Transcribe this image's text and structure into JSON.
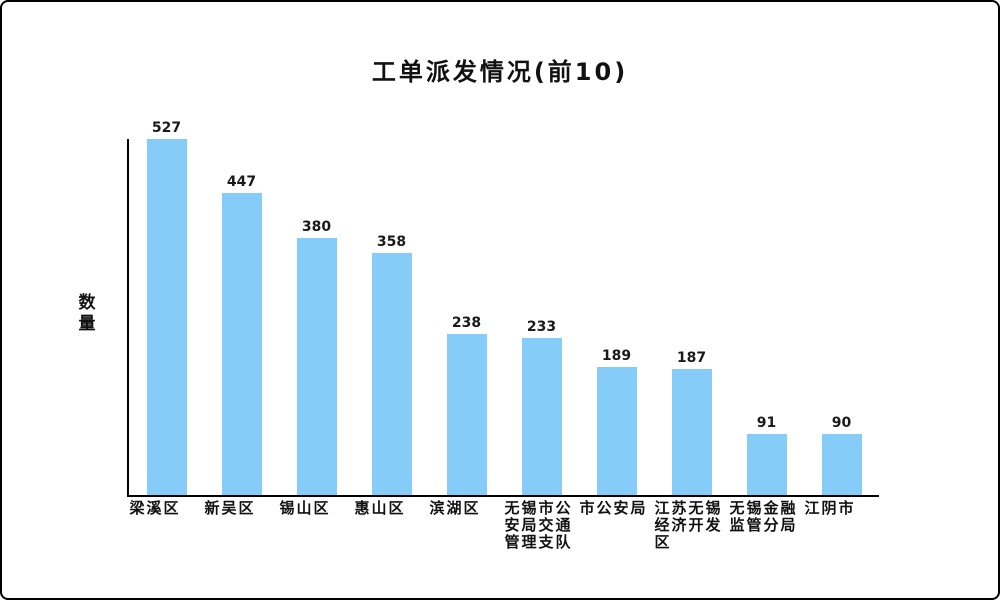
{
  "frame": {
    "background": "#ffffff",
    "border_color": "#000000"
  },
  "chart_data": {
    "type": "bar",
    "title": "工单派发情况(前10)",
    "ylabel": "数量",
    "xlabel": "",
    "categories": [
      "梁溪区",
      "新吴区",
      "锡山区",
      "惠山区",
      "滨湖区",
      "无锡市公安局交通管理支队",
      "市公安局",
      "江苏无锡经济开发区",
      "无锡金融监管分局",
      "江阴市"
    ],
    "values": [
      527,
      447,
      380,
      358,
      238,
      233,
      189,
      187,
      91,
      90
    ],
    "ylim": [
      0,
      527
    ],
    "grid": false,
    "legend_position": "none",
    "data_labels": true,
    "bar_color": "#85CDF8",
    "axis_color": "#000000",
    "value_label_color": "#1a1a1a"
  }
}
